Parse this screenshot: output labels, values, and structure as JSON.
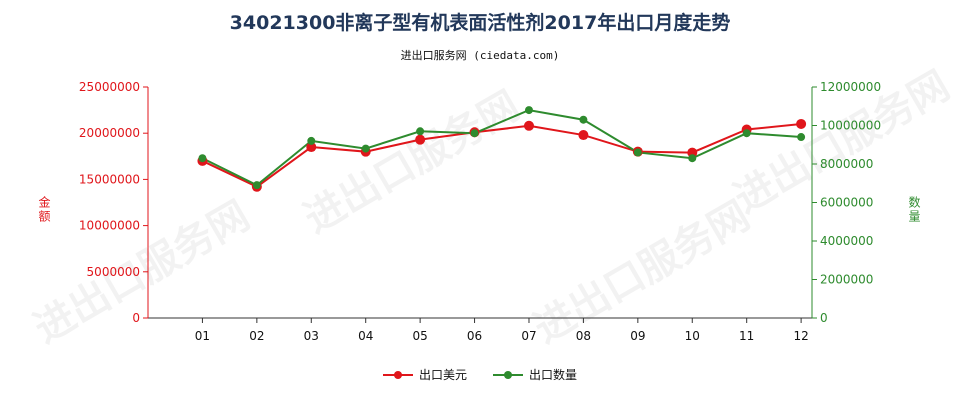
{
  "title": "34021300非离子型有机表面活性剂2017年出口月度走势",
  "subtitle": "进出口服务网 (ciedata.com)",
  "watermark": "进出口服务网",
  "colors": {
    "amount": "#e0161b",
    "quantity": "#2e8b2e",
    "title": "#22385a"
  },
  "chart_data": {
    "type": "line",
    "categories": [
      "01",
      "02",
      "03",
      "04",
      "05",
      "06",
      "07",
      "08",
      "09",
      "10",
      "11",
      "12"
    ],
    "y_left": {
      "label": "金额",
      "ylim": [
        0,
        25000000
      ],
      "ticks": [
        "0",
        "5000000",
        "10000000",
        "15000000",
        "20000000",
        "25000000"
      ]
    },
    "y_right": {
      "label": "数量",
      "ylim": [
        0,
        12000000
      ],
      "ticks": [
        "0",
        "2000000",
        "4000000",
        "6000000",
        "8000000",
        "10000000",
        "12000000"
      ]
    },
    "series": [
      {
        "name": "出口美元",
        "axis": "left",
        "values": [
          17000000,
          14200000,
          18500000,
          18000000,
          19300000,
          20100000,
          20800000,
          19800000,
          18000000,
          17900000,
          20400000,
          21000000
        ]
      },
      {
        "name": "出口数量",
        "axis": "right",
        "values": [
          8300000,
          6900000,
          9200000,
          8800000,
          9700000,
          9600000,
          10800000,
          10300000,
          8600000,
          8300000,
          9600000,
          9400000
        ]
      }
    ],
    "grid": false,
    "legend_position": "bottom"
  }
}
